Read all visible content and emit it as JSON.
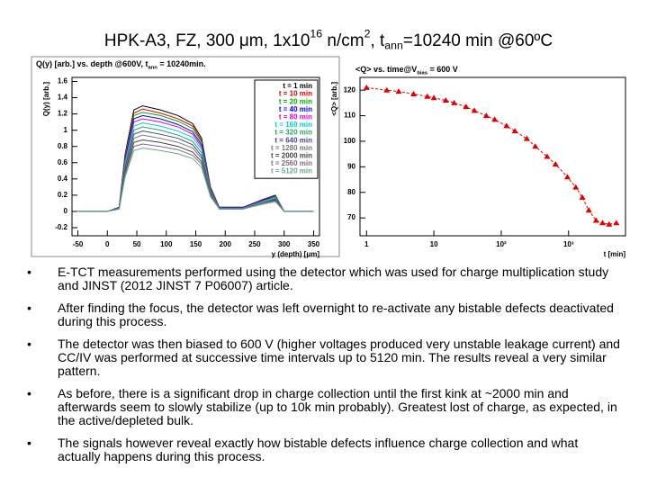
{
  "title": [
    {
      "text": "HPK-A3, FZ, 300 μm, 1x10"
    },
    {
      "text": "16",
      "script": "sup"
    },
    {
      "text": " n/cm"
    },
    {
      "text": "2",
      "script": "sup"
    },
    {
      "text": ", t"
    },
    {
      "text": "ann",
      "script": "sub"
    },
    {
      "text": "=10240 min @60ºC"
    }
  ],
  "chart_data": [
    {
      "type": "line",
      "title": [
        {
          "text": "Q(y) [arb.] vs. depth @600V, t"
        },
        {
          "text": "ann",
          "script": "sub"
        },
        {
          "text": " = 10240min."
        }
      ],
      "xlabel": "y (depth) [μm]",
      "ylabel": "Q(y) [arb.]",
      "x": [
        -50,
        0,
        20,
        30,
        45,
        60,
        90,
        120,
        145,
        160,
        175,
        190,
        230,
        265,
        285,
        300,
        350
      ],
      "xlim": [
        -60,
        360
      ],
      "xticks": [
        -50,
        0,
        50,
        100,
        150,
        200,
        250,
        300,
        350
      ],
      "ylim": [
        -0.3,
        1.65
      ],
      "yticks": [
        -0.2,
        0,
        0.2,
        0.4,
        0.6,
        0.8,
        1,
        1.2,
        1.4,
        1.6
      ],
      "legend": "upper right",
      "series": [
        {
          "name": "t = 1 min",
          "color": "#000000",
          "values": [
            0,
            0,
            0.05,
            0.7,
            1.25,
            1.3,
            1.25,
            1.18,
            1.08,
            0.9,
            0.3,
            0.05,
            0.05,
            0.15,
            0.2,
            0,
            0
          ]
        },
        {
          "name": "t = 10 min",
          "color": "#e00000",
          "values": [
            0,
            0,
            0.05,
            0.68,
            1.21,
            1.26,
            1.21,
            1.14,
            1.05,
            0.87,
            0.29,
            0.05,
            0.05,
            0.15,
            0.19,
            0,
            0
          ]
        },
        {
          "name": "t = 20 min",
          "color": "#00b000",
          "values": [
            0,
            0,
            0.05,
            0.66,
            1.18,
            1.22,
            1.18,
            1.11,
            1.02,
            0.85,
            0.28,
            0.05,
            0.05,
            0.14,
            0.19,
            0,
            0
          ]
        },
        {
          "name": "t = 40 min",
          "color": "#0000ff",
          "values": [
            0,
            0,
            0.05,
            0.64,
            1.14,
            1.18,
            1.14,
            1.07,
            0.98,
            0.82,
            0.27,
            0.05,
            0.05,
            0.14,
            0.18,
            0,
            0
          ]
        },
        {
          "name": "t = 80 min",
          "color": "#dd00dd",
          "values": [
            0,
            0,
            0.04,
            0.62,
            1.1,
            1.14,
            1.1,
            1.04,
            0.95,
            0.79,
            0.26,
            0.04,
            0.04,
            0.13,
            0.18,
            0,
            0
          ]
        },
        {
          "name": "t = 160 min",
          "color": "#00cccc",
          "values": [
            0,
            0,
            0.04,
            0.59,
            1.05,
            1.09,
            1.05,
            0.99,
            0.91,
            0.76,
            0.25,
            0.04,
            0.04,
            0.13,
            0.17,
            0,
            0
          ]
        },
        {
          "name": "t = 320 min",
          "color": "#22aa66",
          "values": [
            0,
            0,
            0.04,
            0.56,
            1,
            1.04,
            1,
            0.94,
            0.86,
            0.72,
            0.24,
            0.04,
            0.04,
            0.12,
            0.16,
            0,
            0
          ]
        },
        {
          "name": "t = 640 min",
          "color": "#444499",
          "values": [
            0,
            0,
            0.04,
            0.53,
            0.95,
            0.99,
            0.95,
            0.9,
            0.82,
            0.68,
            0.23,
            0.04,
            0.04,
            0.11,
            0.15,
            0,
            0
          ]
        },
        {
          "name": "t = 1280 min",
          "color": "#777777",
          "values": [
            0,
            0,
            0.04,
            0.5,
            0.9,
            0.94,
            0.9,
            0.85,
            0.78,
            0.65,
            0.22,
            0.04,
            0.04,
            0.11,
            0.14,
            0,
            0
          ]
        },
        {
          "name": "t = 2000 min",
          "color": "#444444",
          "values": [
            0,
            0,
            0.03,
            0.48,
            0.85,
            0.88,
            0.85,
            0.8,
            0.73,
            0.61,
            0.2,
            0.03,
            0.03,
            0.1,
            0.14,
            0,
            0
          ]
        },
        {
          "name": "t = 2560 min",
          "color": "#886688",
          "values": [
            0,
            0,
            0.03,
            0.45,
            0.8,
            0.83,
            0.8,
            0.76,
            0.69,
            0.58,
            0.19,
            0.03,
            0.03,
            0.1,
            0.13,
            0,
            0
          ]
        },
        {
          "name": "t = 5120 min",
          "color": "#66aa88",
          "values": [
            0,
            0,
            0.03,
            0.42,
            0.75,
            0.78,
            0.75,
            0.71,
            0.65,
            0.54,
            0.18,
            0.03,
            0.03,
            0.09,
            0.12,
            0,
            0
          ]
        }
      ]
    },
    {
      "type": "scatter",
      "title": [
        {
          "text": "<Q> vs. time@V"
        },
        {
          "text": "bias",
          "script": "sub"
        },
        {
          "text": " = 600 V"
        }
      ],
      "xlabel": "t [min]",
      "ylabel": "<Q> [arb.]",
      "xscale": "log",
      "x": [
        1,
        2,
        3,
        5,
        8,
        10,
        15,
        20,
        30,
        40,
        60,
        80,
        120,
        160,
        240,
        320,
        480,
        640,
        960,
        1280,
        1600,
        2000,
        2560,
        3200,
        4000,
        5120
      ],
      "values": [
        121,
        120,
        119.5,
        118.5,
        117.5,
        117,
        116,
        115,
        113.5,
        112,
        110,
        108.5,
        106,
        104,
        101,
        98,
        94,
        91,
        86,
        82,
        78,
        73,
        69,
        68,
        67.5,
        68
      ],
      "color": "#e00000",
      "xlim": [
        0.8,
        7000
      ],
      "xticks": [
        1,
        10,
        {
          "value": 100,
          "label": "10²"
        },
        {
          "value": 1000,
          "label": "10³"
        }
      ],
      "ylim": [
        63,
        125
      ],
      "yticks": [
        70,
        80,
        90,
        100,
        110,
        120
      ]
    }
  ],
  "bullets": [
    "E-TCT measurements performed using the detector which was used for charge multiplication study and JINST (2012 JINST 7 P06007) article.",
    "After finding the focus, the detector was left overnight to re-activate any bistable defects deactivated during this process.",
    "The detector was then biased to 600 V (higher voltages produced very unstable leakage current) and CC/IV was performed at successive time intervals up to 5120 min. The results reveal a very similar pattern.",
    "As before, there is a significant drop in charge collection until the first kink at ~2000 min and afterwards seem to slowly stabilize (up to 10k min probably). Greatest lost of charge, as expected, in the active/depleted bulk.",
    "The signals however reveal exactly how bistable defects influence charge collection and what actually happens during this process."
  ]
}
